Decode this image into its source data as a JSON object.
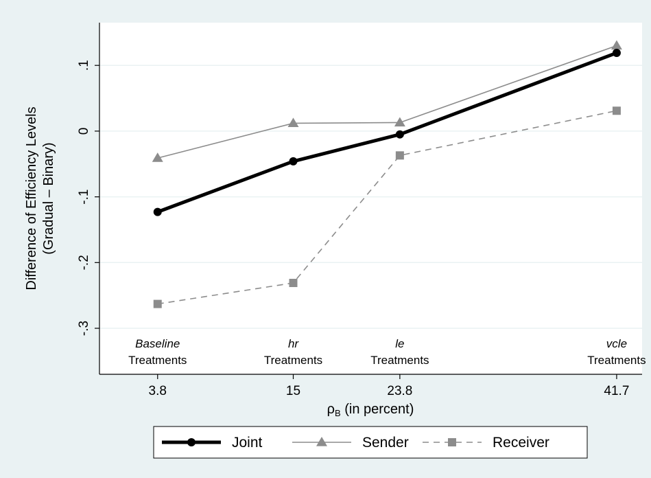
{
  "chart_data": {
    "type": "line",
    "ylabel_line1": "Difference of Efficiency Levels",
    "ylabel_line2": "(Gradual – Binary)",
    "xlabel_main": "ρ",
    "xlabel_sub": "B",
    "xlabel_rest": " (in percent)",
    "x": [
      3.8,
      15,
      23.8,
      41.7
    ],
    "x_tick_labels": [
      "3.8",
      "15",
      "23.8",
      "41.7"
    ],
    "xlim": [
      -1,
      43.8
    ],
    "ylim": [
      -0.37,
      0.165
    ],
    "y_ticks": [
      -0.3,
      -0.2,
      -0.1,
      0,
      0.1
    ],
    "y_tick_labels": [
      "-.3",
      "-.2",
      "-.1",
      "0",
      ".1"
    ],
    "grid": true,
    "legend_position": "bottom",
    "annotations": [
      {
        "x": 3.8,
        "top": "Baseline",
        "bottom": "Treatments"
      },
      {
        "x": 15,
        "top": "hr",
        "bottom": "Treatments"
      },
      {
        "x": 23.8,
        "top": "le",
        "bottom": "Treatments"
      },
      {
        "x": 41.7,
        "top": "vcle",
        "bottom": "Treatments"
      }
    ],
    "series": [
      {
        "name": "Joint",
        "values": [
          -0.123,
          -0.046,
          -0.005,
          0.119
        ],
        "color": "#000000",
        "marker": "circle",
        "style": "solid-thick"
      },
      {
        "name": "Sender",
        "values": [
          -0.041,
          0.012,
          0.013,
          0.13
        ],
        "color": "#8c8c8c",
        "marker": "triangle",
        "style": "solid"
      },
      {
        "name": "Receiver",
        "values": [
          -0.263,
          -0.231,
          -0.037,
          0.031
        ],
        "color": "#8c8c8c",
        "marker": "square",
        "style": "dashed"
      }
    ],
    "colors": {
      "outer_bg": "#eaf2f3",
      "plot_bg": "#ffffff",
      "grid": "#eaf2f3"
    }
  }
}
